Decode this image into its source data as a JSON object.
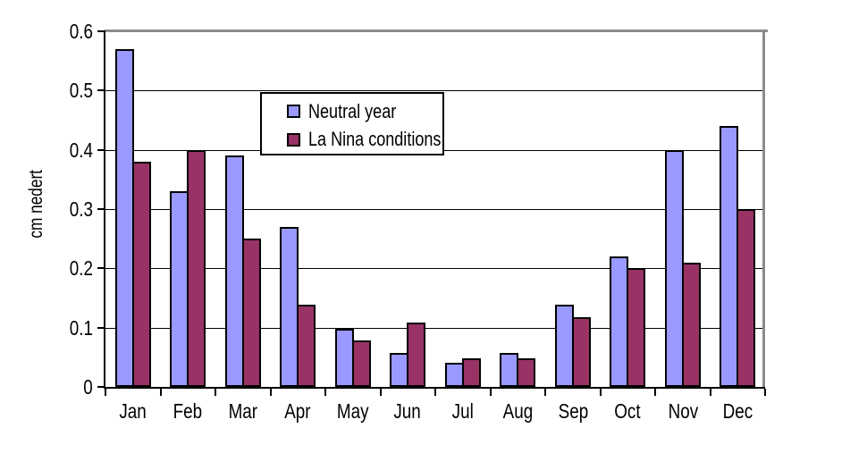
{
  "chart_data": {
    "type": "bar",
    "categories": [
      "Jan",
      "Feb",
      "Mar",
      "Apr",
      "May",
      "Jun",
      "Jul",
      "Aug",
      "Sep",
      "Oct",
      "Nov",
      "Dec"
    ],
    "series": [
      {
        "name": "Neutral year",
        "color": "#9999FF",
        "values": [
          0.57,
          0.33,
          0.39,
          0.27,
          0.098,
          0.058,
          0.04,
          0.058,
          0.138,
          0.22,
          0.4,
          0.44
        ]
      },
      {
        "name": "La Nina conditions",
        "color": "#993366",
        "values": [
          0.38,
          0.4,
          0.25,
          0.138,
          0.078,
          0.108,
          0.048,
          0.048,
          0.118,
          0.2,
          0.21,
          0.3
        ]
      }
    ],
    "xlabel": "",
    "ylabel": "cm nedert",
    "ylim": [
      0,
      0.6
    ],
    "yticks": [
      0,
      0.1,
      0.2,
      0.3,
      0.4,
      0.5,
      0.6
    ],
    "ytick_labels": [
      "0",
      "0.1",
      "0.2",
      "0.3",
      "0.4",
      "0.5",
      "0.6"
    ],
    "grid": true,
    "legend_position": "inside-upper-center"
  },
  "colors": {
    "bar_neutral_year": "#9999FF",
    "bar_la_nina": "#993366",
    "axis": "#000000",
    "gridline": "#000000",
    "plot_border": "#8C8C8C",
    "background": "#FFFFFF"
  }
}
